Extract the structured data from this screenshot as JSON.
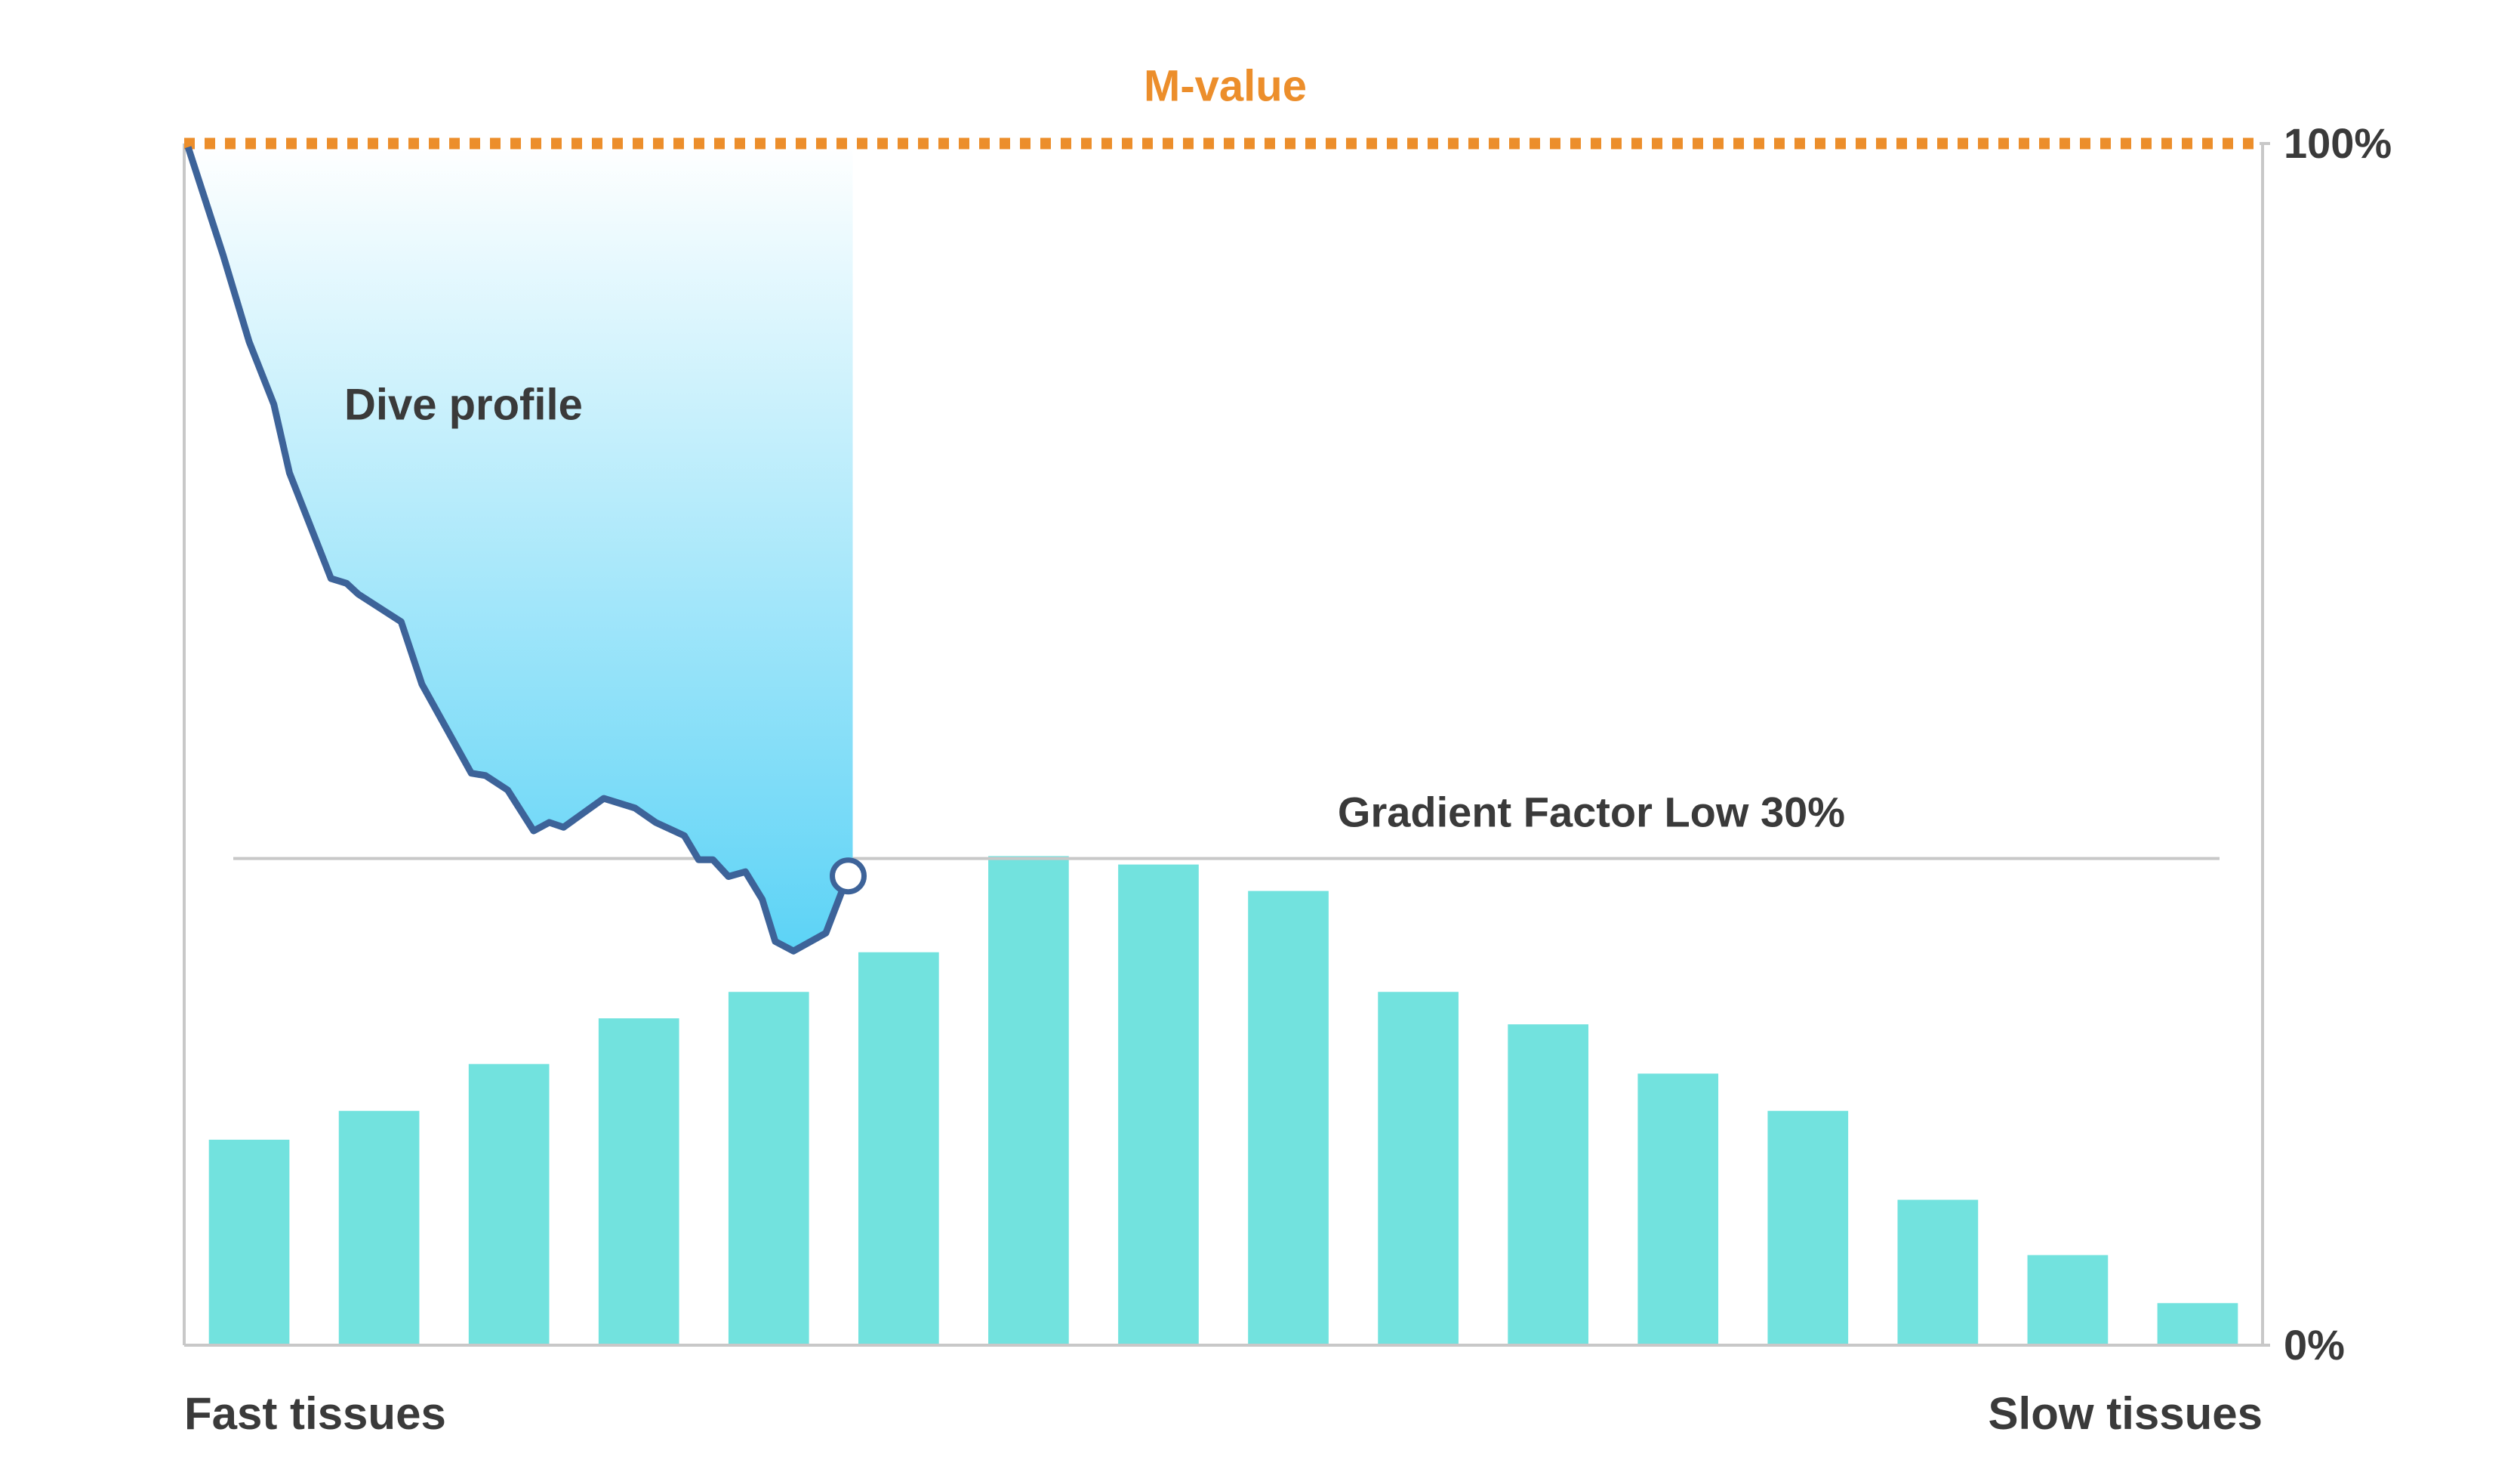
{
  "chart_data": {
    "type": "bar",
    "title": "M-value",
    "title_color": "#ec8e2b",
    "categories": [
      null,
      null,
      null,
      null,
      null,
      null,
      null,
      null,
      null,
      null,
      null,
      null,
      null,
      null,
      null,
      null
    ],
    "values": [
      17.1,
      19.5,
      23.4,
      27.2,
      29.4,
      32.7,
      40.7,
      40.0,
      37.8,
      29.4,
      26.7,
      22.6,
      19.5,
      12.1,
      7.5,
      3.5
    ],
    "color": "#72e2de",
    "x_labels": [
      "Fast tissues",
      "Slow tissues"
    ],
    "xlim": [
      0,
      16
    ],
    "ylim": [
      0,
      100
    ],
    "yticks": [
      {
        "value": 0,
        "label": "0%"
      },
      {
        "value": 100,
        "label": "100%"
      }
    ],
    "reference_line": {
      "label": "Gradient Factor Low 30%",
      "value": 40.5,
      "color": "#c8c8c8"
    },
    "profile": {
      "label": "Dive profile",
      "color": "#3d6399",
      "x": [
        0.03,
        0.3,
        0.5,
        0.69,
        0.81,
        1.13,
        1.25,
        1.34,
        1.67,
        1.83,
        2.21,
        2.32,
        2.49,
        2.69,
        2.81,
        2.92,
        3.23,
        3.47,
        3.63,
        3.85,
        3.96,
        4.07,
        4.19,
        4.32,
        4.45,
        4.55,
        4.69,
        4.94,
        5.1
      ],
      "values": [
        99.7,
        90.7,
        83.5,
        78.3,
        72.6,
        63.8,
        63.4,
        62.5,
        60.2,
        55.0,
        47.6,
        47.4,
        46.2,
        42.8,
        43.5,
        43.1,
        45.5,
        44.7,
        43.5,
        42.4,
        40.4,
        40.4,
        39.0,
        39.4,
        37.1,
        33.6,
        32.8,
        34.3,
        38.8
      ]
    }
  }
}
